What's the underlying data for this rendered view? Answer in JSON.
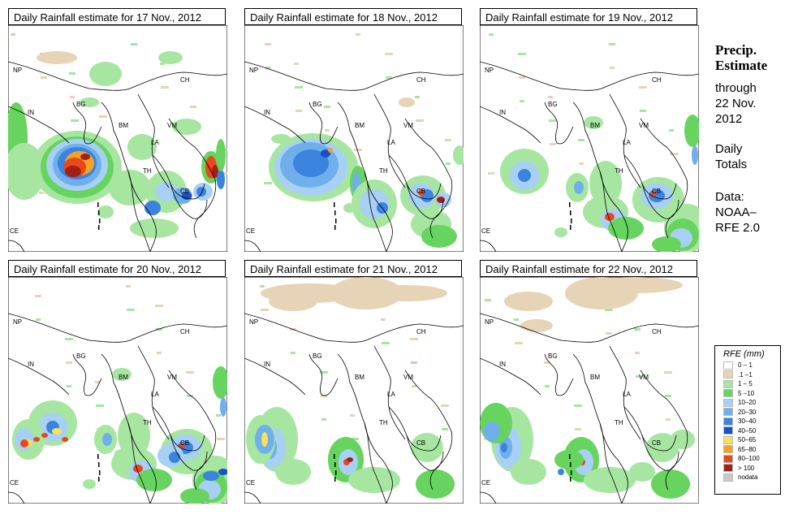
{
  "panels": [
    {
      "title": "Daily Rainfall estimate for  17 Nov., 2012",
      "intensity": "very-high"
    },
    {
      "title": "Daily Rainfall estimate for  18 Nov., 2012",
      "intensity": "high"
    },
    {
      "title": "Daily Rainfall estimate for  19 Nov., 2012",
      "intensity": "moderate"
    },
    {
      "title": "Daily Rainfall estimate for  20 Nov., 2012",
      "intensity": "moderate"
    },
    {
      "title": "Daily Rainfall estimate for  21 Nov., 2012",
      "intensity": "light"
    },
    {
      "title": "Daily Rainfall estimate for  22 Nov., 2012",
      "intensity": "light"
    }
  ],
  "country_labels": [
    "NP",
    "CH",
    "IN",
    "BG",
    "BM",
    "VM",
    "LA",
    "TH",
    "CB",
    "CE"
  ],
  "sidebar": {
    "heading1": "Precip.",
    "heading2": "Estimate",
    "through1": "through",
    "through2": "22 Nov.",
    "through3": "2012",
    "daily1": "Daily",
    "daily2": "Totals",
    "data1": "Data:",
    "data2": "NOAA–",
    "data3": "RFE 2.0"
  },
  "legend": {
    "title": "RFE (mm)",
    "items": [
      {
        "label": "0 – 1",
        "color": "#ffffff"
      },
      {
        "label": ".1 –1",
        "color": "#e7d3b5"
      },
      {
        "label": "1 – 5",
        "color": "#a6e6a0"
      },
      {
        "label": "5 –10",
        "color": "#66d45e"
      },
      {
        "label": "10–20",
        "color": "#a8d0f5"
      },
      {
        "label": "20–30",
        "color": "#6fb0ec"
      },
      {
        "label": "30–40",
        "color": "#3a83de"
      },
      {
        "label": "40–50",
        "color": "#1d4fc6"
      },
      {
        "label": "50–65",
        "color": "#f7e05a"
      },
      {
        "label": "65–80",
        "color": "#f6a420"
      },
      {
        "label": "80–100",
        "color": "#e8481c"
      },
      {
        "label": "> 100",
        "color": "#a1201a"
      },
      {
        "label": "nodata",
        "color": "#c8c8c8"
      }
    ]
  }
}
